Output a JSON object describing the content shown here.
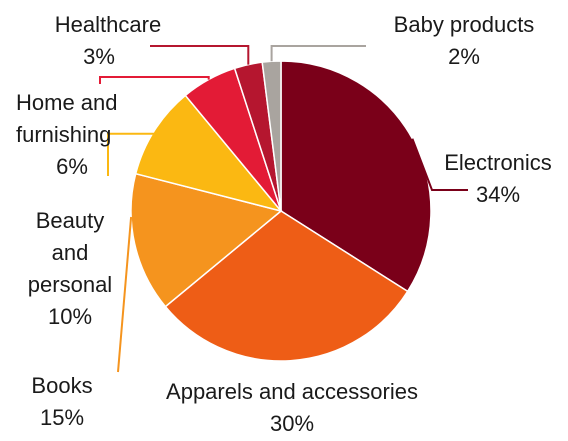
{
  "chart_data": {
    "type": "pie",
    "start_angle_deg": 0,
    "direction": "clockwise",
    "slices": [
      {
        "label": "Electronics",
        "value": 34,
        "pct_label": "34%",
        "color": "#7a0019"
      },
      {
        "label": "Apparels and accessories",
        "value": 30,
        "pct_label": "30%",
        "color": "#ee5d16"
      },
      {
        "label": "Books",
        "value": 15,
        "pct_label": "15%",
        "color": "#f5941e"
      },
      {
        "label": "Beauty and personal",
        "value": 10,
        "pct_label": "10%",
        "color": "#fbb812"
      },
      {
        "label": "Home and furnishing",
        "value": 6,
        "pct_label": "6%",
        "color": "#e31b36"
      },
      {
        "label": "Healthcare",
        "value": 3,
        "pct_label": "3%",
        "color": "#b5162f"
      },
      {
        "label": "Baby products",
        "value": 2,
        "pct_label": "2%",
        "color": "#a9a49f"
      }
    ]
  }
}
